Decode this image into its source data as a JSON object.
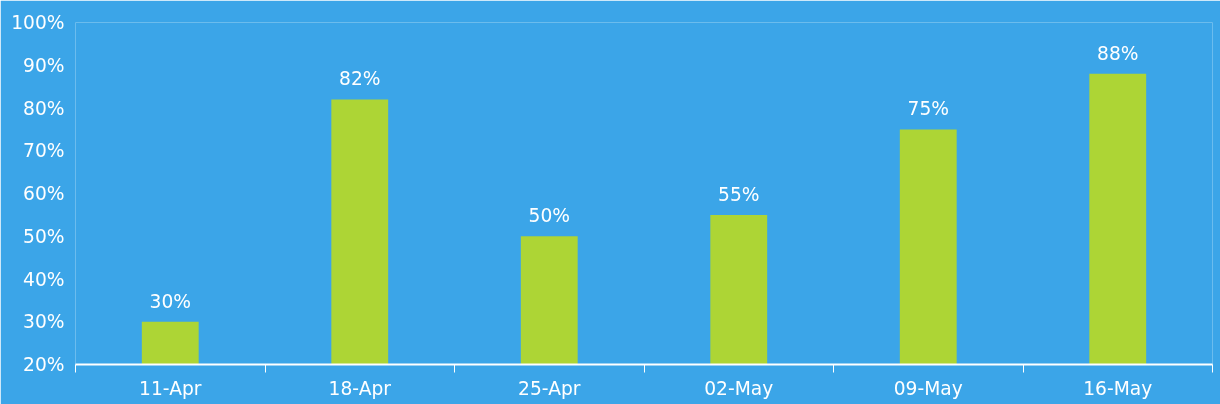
{
  "chart_data": {
    "type": "bar",
    "categories": [
      "11-Apr",
      "18-Apr",
      "25-Apr",
      "02-May",
      "09-May",
      "16-May"
    ],
    "values": [
      30,
      82,
      50,
      55,
      75,
      88
    ],
    "value_labels": [
      "30%",
      "82%",
      "50%",
      "55%",
      "75%",
      "88%"
    ],
    "color": "#add535",
    "ylim": [
      20,
      100
    ],
    "yticks": [
      {
        "value": 20,
        "label": "20%"
      },
      {
        "value": 30,
        "label": "30%"
      },
      {
        "value": 40,
        "label": "40%"
      },
      {
        "value": 50,
        "label": "50%"
      },
      {
        "value": 60,
        "label": "60%"
      },
      {
        "value": 70,
        "label": "70%"
      },
      {
        "value": 80,
        "label": "80%"
      },
      {
        "value": 90,
        "label": "90%"
      },
      {
        "value": 100,
        "label": "100%"
      }
    ],
    "grid": false
  }
}
